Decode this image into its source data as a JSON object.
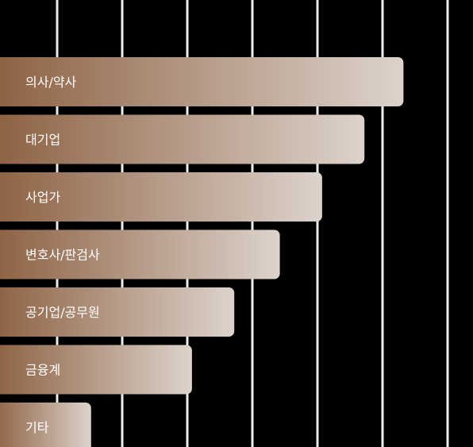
{
  "chart_data": {
    "type": "bar",
    "orientation": "horizontal",
    "categories": [
      "의사/약사",
      "대기업",
      "사업가",
      "변호사/판검사",
      "공기업/공무원",
      "금융계",
      "기타"
    ],
    "values": [
      6.2,
      5.6,
      4.95,
      4.3,
      3.6,
      2.95,
      1.4
    ],
    "xlim": [
      0,
      7
    ],
    "grid": true,
    "colors": {
      "background": "#000000",
      "grid": "#ececec",
      "bar_start": "#8d6142",
      "bar_end": "#ddd3cc"
    }
  }
}
